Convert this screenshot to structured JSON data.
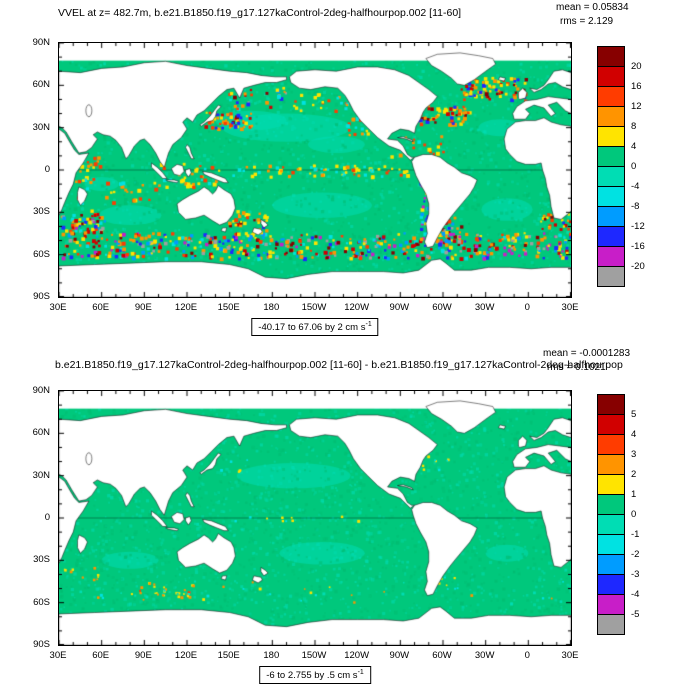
{
  "chart_data": [
    {
      "type": "heatmap",
      "subtype": "global-lat-lon-map",
      "title": "VVEL at z= 482.7m, b.e21.B1850.f19_g17.127kaControl-2deg-halfhourpop.002 [11-60]",
      "stats": {
        "mean": 0.05834,
        "rms": 2.129,
        "mean_label": "mean = 0.05834",
        "rms_label": "rms = 2.129"
      },
      "range_label": "-40.17 to 67.06 by 2 cm s",
      "range_sup": "-1",
      "field_min": -40.17,
      "field_max": 67.06,
      "contour_interval": 2,
      "units": "cm s-1",
      "lon_range": [
        "30E",
        "30E (wrap, 180 centered)"
      ],
      "lat_range": [
        "90S",
        "90N"
      ],
      "xticks": [
        "30E",
        "60E",
        "90E",
        "120E",
        "150E",
        "180",
        "150W",
        "120W",
        "90W",
        "60W",
        "30W",
        "0",
        "30E"
      ],
      "yticks": [
        "90N",
        "60N",
        "30N",
        "0",
        "30S",
        "60S",
        "90S"
      ],
      "colorbar": {
        "labels": [
          "20",
          "16",
          "12",
          "8",
          "4",
          "0",
          "-4",
          "-8",
          "-12",
          "-16",
          "-20"
        ],
        "colors": [
          "#870000",
          "#d10000",
          "#ff3c00",
          "#ff9400",
          "#ffe400",
          "#00c87c",
          "#00ddb4",
          "#00e2e2",
          "#009cff",
          "#1e28ff",
          "#c81ec8",
          "#a0a0a0"
        ]
      },
      "ocean_base_color": "#00c87c",
      "land_color": "#ffffff"
    },
    {
      "type": "heatmap",
      "subtype": "global-lat-lon-map-difference",
      "title": "b.e21.B1850.f19_g17.127kaControl-2deg-halfhourpop.002 [11-60] - b.e21.B1850.f19_g17.127kaControl-2deg-halfhourpop",
      "stats": {
        "mean": -0.0001283,
        "rms": 0.1021,
        "mean_label": "mean = -0.0001283",
        "rms_label": "rms = 0.1021"
      },
      "range_label": "-6 to 2.755 by .5 cm s",
      "range_sup": "-1",
      "field_min": -6,
      "field_max": 2.755,
      "contour_interval": 0.5,
      "units": "cm s-1",
      "lon_range": [
        "30E",
        "30E (wrap, 180 centered)"
      ],
      "lat_range": [
        "90S",
        "90N"
      ],
      "xticks": [
        "30E",
        "60E",
        "90E",
        "120E",
        "150E",
        "180",
        "150W",
        "120W",
        "90W",
        "60W",
        "30W",
        "0",
        "30E"
      ],
      "yticks": [
        "90N",
        "60N",
        "30N",
        "0",
        "30S",
        "60S",
        "90S"
      ],
      "colorbar": {
        "labels": [
          "5",
          "4",
          "3",
          "2",
          "1",
          "0",
          "-1",
          "-2",
          "-3",
          "-4",
          "-5"
        ],
        "colors": [
          "#870000",
          "#d10000",
          "#ff3c00",
          "#ff9400",
          "#ffe400",
          "#00c87c",
          "#00ddb4",
          "#00e2e2",
          "#009cff",
          "#1e28ff",
          "#c81ec8",
          "#a0a0a0"
        ]
      },
      "ocean_base_color": "#00c87c",
      "land_color": "#ffffff"
    }
  ]
}
